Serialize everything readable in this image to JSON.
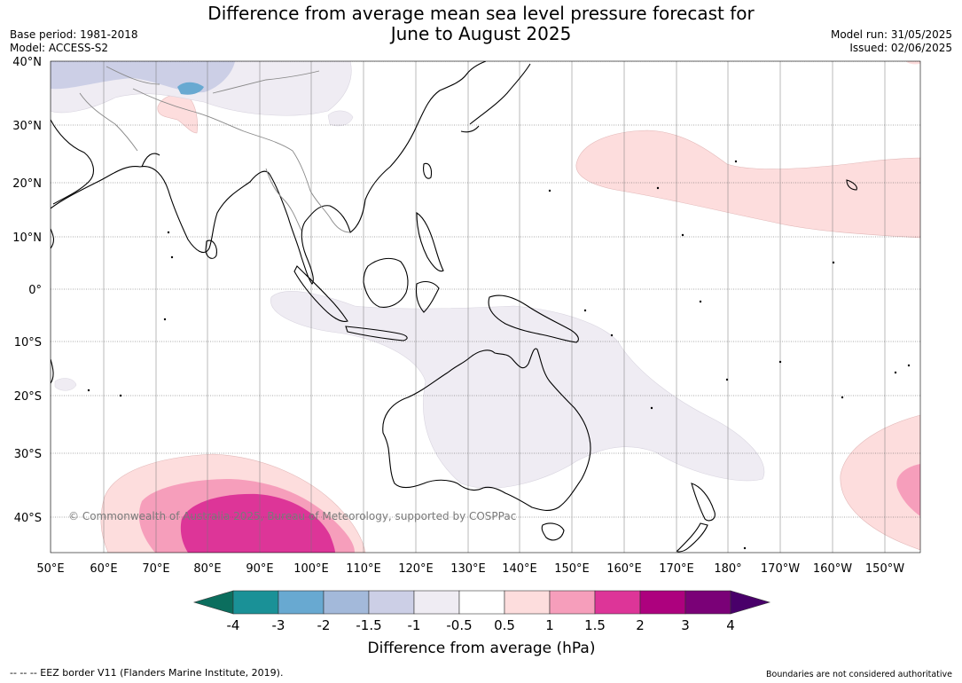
{
  "title_line1": "Difference from average mean sea level pressure forecast for",
  "title_line2": "June to August 2025",
  "base_period": "Base period: 1981-2018",
  "model": "Model: ACCESS-S2",
  "model_run": "Model run: 31/05/2025",
  "issued": "Issued: 02/06/2025",
  "copyright": "© Commonwealth of Australia 2025, Bureau of Meteorology, supported by COSPPac",
  "lat_labels": [
    "40°N",
    "30°N",
    "20°N",
    "10°N",
    "0°",
    "10°S",
    "20°S",
    "30°S",
    "40°S"
  ],
  "lon_labels": [
    "50°E",
    "60°E",
    "70°E",
    "80°E",
    "90°E",
    "100°E",
    "110°E",
    "120°E",
    "130°E",
    "140°E",
    "150°E",
    "160°E",
    "170°E",
    "180°",
    "170°W",
    "160°W",
    "150°W"
  ],
  "colorbar": {
    "ticks": [
      "-4",
      "-3",
      "-2",
      "-1.5",
      "-1",
      "-0.5",
      "0.5",
      "1",
      "1.5",
      "2",
      "3",
      "4"
    ],
    "colors": [
      "#1a9197",
      "#68a9d1",
      "#a3b9da",
      "#cccfe6",
      "#efecf3",
      "#ffffff",
      "#fddddd",
      "#f69ebb",
      "#dd3598",
      "#ad017e",
      "#7a0177"
    ],
    "under_color": "#0b6e5e",
    "over_color": "#49006a",
    "label": "Difference from average (hPa)"
  },
  "footer_left": "--  --  -- EEZ border V11 (Flanders Marine Institute, 2019).",
  "footer_right": "Boundaries are not considered authoritative"
}
